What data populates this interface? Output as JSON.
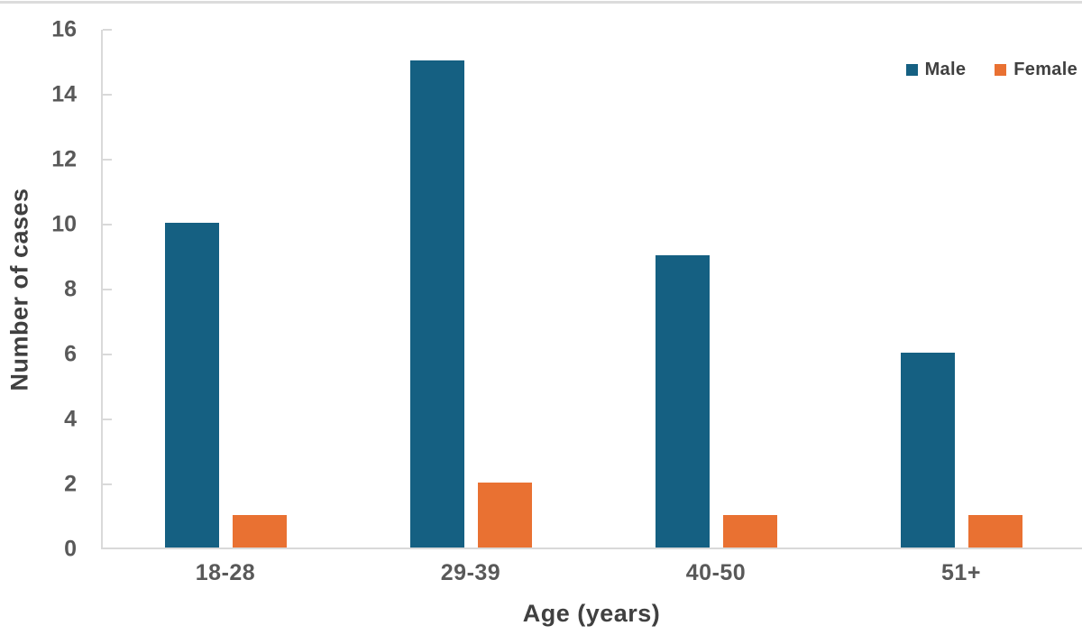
{
  "chart_data": {
    "type": "bar",
    "title": "",
    "xlabel": "Age (years)",
    "ylabel": "Number of cases",
    "categories": [
      "18-28",
      "29-39",
      "40-50",
      "51+"
    ],
    "series": [
      {
        "name": "Male",
        "color": "#156082",
        "values": [
          10,
          15,
          9,
          6
        ]
      },
      {
        "name": "Female",
        "color": "#E97132",
        "values": [
          1,
          2,
          1,
          1
        ]
      }
    ],
    "ylim": [
      0,
      16
    ],
    "yticks": [
      0,
      2,
      4,
      6,
      8,
      10,
      12,
      14,
      16
    ],
    "legend_position": "top-right",
    "grid": false,
    "axis_color": "#d9d9d9",
    "tick_label_color": "#595959",
    "axis_title_color": "#404040"
  }
}
